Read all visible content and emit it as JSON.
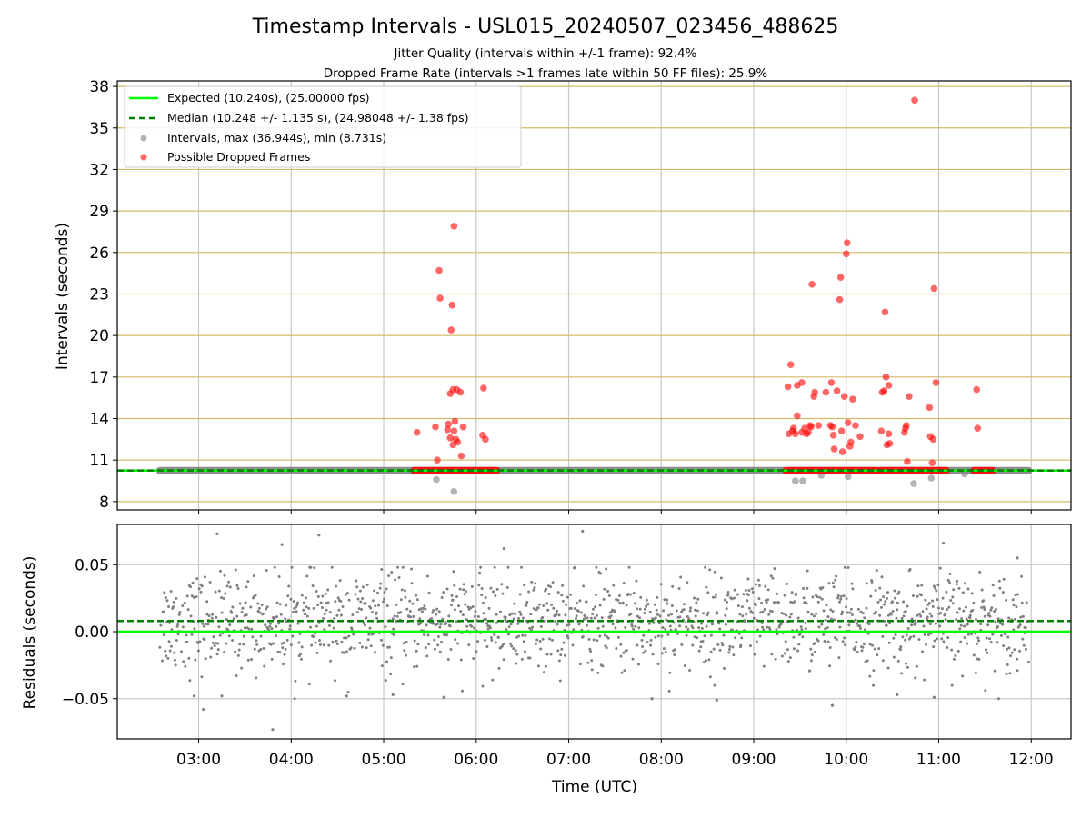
{
  "chart_data": [
    {
      "type": "scatter",
      "title": "Timestamp Intervals - USL015_20240507_023456_488625",
      "subtitle_lines": [
        "Jitter Quality (intervals within +/-1 frame): 92.4%",
        "Dropped Frame Rate (intervals >1 frames late within 50 FF files): 25.9%"
      ],
      "xlabel": "",
      "ylabel": "Intervals (seconds)",
      "xlim_hours": [
        2.12,
        12.43
      ],
      "ylim": [
        7.4,
        38.4
      ],
      "y_ticks": [
        8,
        11,
        14,
        17,
        20,
        23,
        26,
        29,
        32,
        35,
        38
      ],
      "x_ticks": [
        "03:00",
        "04:00",
        "05:00",
        "06:00",
        "07:00",
        "08:00",
        "09:00",
        "10:00",
        "11:00",
        "12:00"
      ],
      "x_tick_hours": [
        3,
        4,
        5,
        6,
        7,
        8,
        9,
        10,
        11,
        12
      ],
      "grid": true,
      "legend_position": "top-left",
      "legend": [
        "Expected (10.240s), (25.00000 fps)",
        "Median (10.248 +/- 1.135 s), (24.98048 +/- 1.38 fps)",
        "Intervals, max (36.944s), min (8.731s)",
        "Possible Dropped Frames"
      ],
      "expected_interval": 10.24,
      "median_interval": 10.248,
      "interval_band_hours": [
        2.58,
        11.97
      ],
      "interval_band_value": 10.24,
      "dropped_band_segments": [
        [
          5.33,
          6.22
        ],
        [
          9.35,
          10.33
        ],
        [
          10.37,
          11.08
        ],
        [
          11.38,
          11.58
        ]
      ],
      "dropped_band_value": 10.24,
      "series": [
        {
          "name": "Intervals, max (36.944s), min (8.731s)",
          "color": "#808080",
          "points": [
            [
              5.57,
              9.6
            ],
            [
              5.76,
              8.73
            ],
            [
              9.45,
              9.5
            ],
            [
              9.53,
              9.5
            ],
            [
              9.73,
              9.9
            ],
            [
              10.02,
              9.8
            ],
            [
              10.73,
              9.3
            ],
            [
              10.92,
              9.7
            ],
            [
              11.28,
              10.0
            ]
          ]
        },
        {
          "name": "Possible Dropped Frames",
          "color": "#ff0000",
          "points": [
            [
              5.36,
              13.0
            ],
            [
              5.56,
              13.4
            ],
            [
              5.58,
              11.0
            ],
            [
              5.6,
              24.7
            ],
            [
              5.61,
              22.7
            ],
            [
              5.69,
              13.2
            ],
            [
              5.7,
              13.6
            ],
            [
              5.72,
              12.6
            ],
            [
              5.72,
              15.8
            ],
            [
              5.73,
              20.4
            ],
            [
              5.74,
              22.2
            ],
            [
              5.75,
              16.1
            ],
            [
              5.75,
              12.1
            ],
            [
              5.76,
              13.1
            ],
            [
              5.76,
              27.9
            ],
            [
              5.77,
              13.8
            ],
            [
              5.78,
              12.5
            ],
            [
              5.79,
              16.1
            ],
            [
              5.8,
              12.3
            ],
            [
              5.83,
              15.9
            ],
            [
              5.84,
              11.3
            ],
            [
              5.86,
              13.4
            ],
            [
              6.07,
              12.8
            ],
            [
              6.08,
              16.2
            ],
            [
              6.1,
              12.5
            ],
            [
              9.37,
              16.3
            ],
            [
              9.38,
              12.9
            ],
            [
              9.4,
              17.9
            ],
            [
              9.42,
              13.1
            ],
            [
              9.43,
              13.3
            ],
            [
              9.45,
              12.9
            ],
            [
              9.47,
              14.2
            ],
            [
              9.47,
              16.4
            ],
            [
              9.52,
              16.6
            ],
            [
              9.52,
              13.0
            ],
            [
              9.55,
              13.3
            ],
            [
              9.57,
              12.9
            ],
            [
              9.59,
              13.0
            ],
            [
              9.61,
              13.5
            ],
            [
              9.62,
              13.4
            ],
            [
              9.63,
              23.7
            ],
            [
              9.65,
              15.6
            ],
            [
              9.66,
              15.9
            ],
            [
              9.7,
              13.5
            ],
            [
              9.78,
              15.9
            ],
            [
              9.83,
              13.5
            ],
            [
              9.84,
              16.6
            ],
            [
              9.85,
              13.4
            ],
            [
              9.86,
              12.8
            ],
            [
              9.87,
              11.8
            ],
            [
              9.9,
              16.0
            ],
            [
              9.93,
              22.6
            ],
            [
              9.94,
              24.2
            ],
            [
              9.95,
              13.1
            ],
            [
              9.96,
              11.6
            ],
            [
              9.98,
              15.6
            ],
            [
              10.0,
              25.9
            ],
            [
              10.01,
              26.7
            ],
            [
              10.02,
              13.7
            ],
            [
              10.04,
              12.0
            ],
            [
              10.05,
              12.3
            ],
            [
              10.07,
              15.4
            ],
            [
              10.1,
              13.5
            ],
            [
              10.15,
              12.7
            ],
            [
              10.38,
              13.1
            ],
            [
              10.39,
              15.9
            ],
            [
              10.41,
              16.0
            ],
            [
              10.42,
              21.7
            ],
            [
              10.43,
              17.0
            ],
            [
              10.44,
              12.1
            ],
            [
              10.46,
              16.4
            ],
            [
              10.46,
              12.9
            ],
            [
              10.47,
              12.2
            ],
            [
              10.63,
              13.0
            ],
            [
              10.64,
              13.3
            ],
            [
              10.65,
              13.5
            ],
            [
              10.66,
              10.9
            ],
            [
              10.68,
              15.6
            ],
            [
              10.74,
              37.0
            ],
            [
              10.9,
              14.8
            ],
            [
              10.91,
              12.7
            ],
            [
              10.93,
              10.8
            ],
            [
              10.94,
              12.5
            ],
            [
              10.95,
              23.4
            ],
            [
              10.97,
              16.6
            ],
            [
              11.41,
              16.1
            ],
            [
              11.42,
              13.3
            ]
          ]
        }
      ]
    },
    {
      "type": "scatter",
      "title": "",
      "xlabel": "Time (UTC)",
      "ylabel": "Residuals (seconds)",
      "xlim_hours": [
        2.12,
        12.43
      ],
      "ylim": [
        -0.08,
        0.08
      ],
      "y_ticks": [
        -0.05,
        0.0,
        0.05
      ],
      "y_tick_labels": [
        "−0.05",
        "0.00",
        "0.05"
      ],
      "x_ticks": [
        "03:00",
        "04:00",
        "05:00",
        "06:00",
        "07:00",
        "08:00",
        "09:00",
        "10:00",
        "11:00",
        "12:00"
      ],
      "x_tick_hours": [
        3,
        4,
        5,
        6,
        7,
        8,
        9,
        10,
        11,
        12
      ],
      "grid": true,
      "expected_residual": 0.0,
      "median_residual": 0.008,
      "residual_range": [
        -0.05,
        0.068
      ],
      "residual_center": 0.007,
      "residual_spread": 0.018,
      "residual_hours": [
        2.58,
        11.97
      ],
      "residual_extremes": [
        [
          2.95,
          -0.048
        ],
        [
          3.05,
          -0.058
        ],
        [
          3.2,
          0.073
        ],
        [
          3.25,
          -0.048
        ],
        [
          3.8,
          -0.073
        ],
        [
          3.9,
          0.065
        ],
        [
          4.3,
          0.072
        ],
        [
          4.6,
          -0.048
        ],
        [
          5.1,
          -0.047
        ],
        [
          5.65,
          -0.049
        ],
        [
          6.3,
          0.062
        ],
        [
          7.15,
          0.075
        ],
        [
          7.9,
          -0.05
        ],
        [
          8.6,
          -0.051
        ],
        [
          9.85,
          -0.055
        ],
        [
          10.55,
          -0.047
        ],
        [
          10.95,
          -0.049
        ],
        [
          11.05,
          0.066
        ],
        [
          11.85,
          0.055
        ]
      ]
    }
  ],
  "colors": {
    "expected": "#00ff00",
    "median": "#008000",
    "intervals": "#808080",
    "dropped": "#ff0000",
    "hgrid_top": "#d4b96a",
    "grid": "#c8c8c8"
  }
}
